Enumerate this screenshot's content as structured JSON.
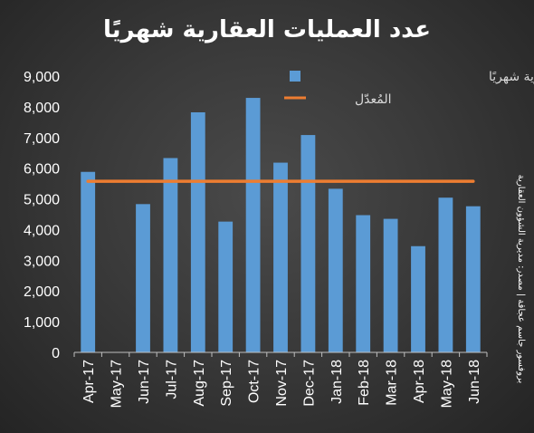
{
  "title": "عدد العمليات العقارية شهريًا",
  "source": "بروفسور جاسم عجاقة | مصدر: مديرية الشؤون العقارية",
  "colors": {
    "bar": "#5b9bd5",
    "average": "#ed7d31",
    "text": "#ffffff"
  },
  "chart_data": {
    "type": "bar",
    "title": "عدد العمليات العقارية شهريًا",
    "categories": [
      "Apr-17",
      "May-17",
      "Jun-17",
      "Jul-17",
      "Aug-17",
      "Sep-17",
      "Oct-17",
      "Nov-17",
      "Dec-17",
      "Jan-18",
      "Feb-18",
      "Mar-18",
      "Apr-18",
      "May-18",
      "Jun-18"
    ],
    "series": [
      {
        "name": "عدد العمليات العقارية شهريًا",
        "type": "bar",
        "values": [
          5880,
          0,
          4830,
          6330,
          7820,
          4260,
          8290,
          6180,
          7080,
          5330,
          4470,
          4350,
          3460,
          5040,
          4760
        ]
      },
      {
        "name": "المُعدّل",
        "type": "line",
        "values": [
          5575,
          5575,
          5575,
          5575,
          5575,
          5575,
          5575,
          5575,
          5575,
          5575,
          5575,
          5575,
          5575,
          5575,
          5575
        ]
      }
    ],
    "yticks": [
      "0",
      "1,000",
      "2,000",
      "3,000",
      "4,000",
      "5,000",
      "6,000",
      "7,000",
      "8,000",
      "9,000"
    ],
    "ylim": [
      0,
      9000
    ],
    "grid": false,
    "legend": "top-right"
  }
}
